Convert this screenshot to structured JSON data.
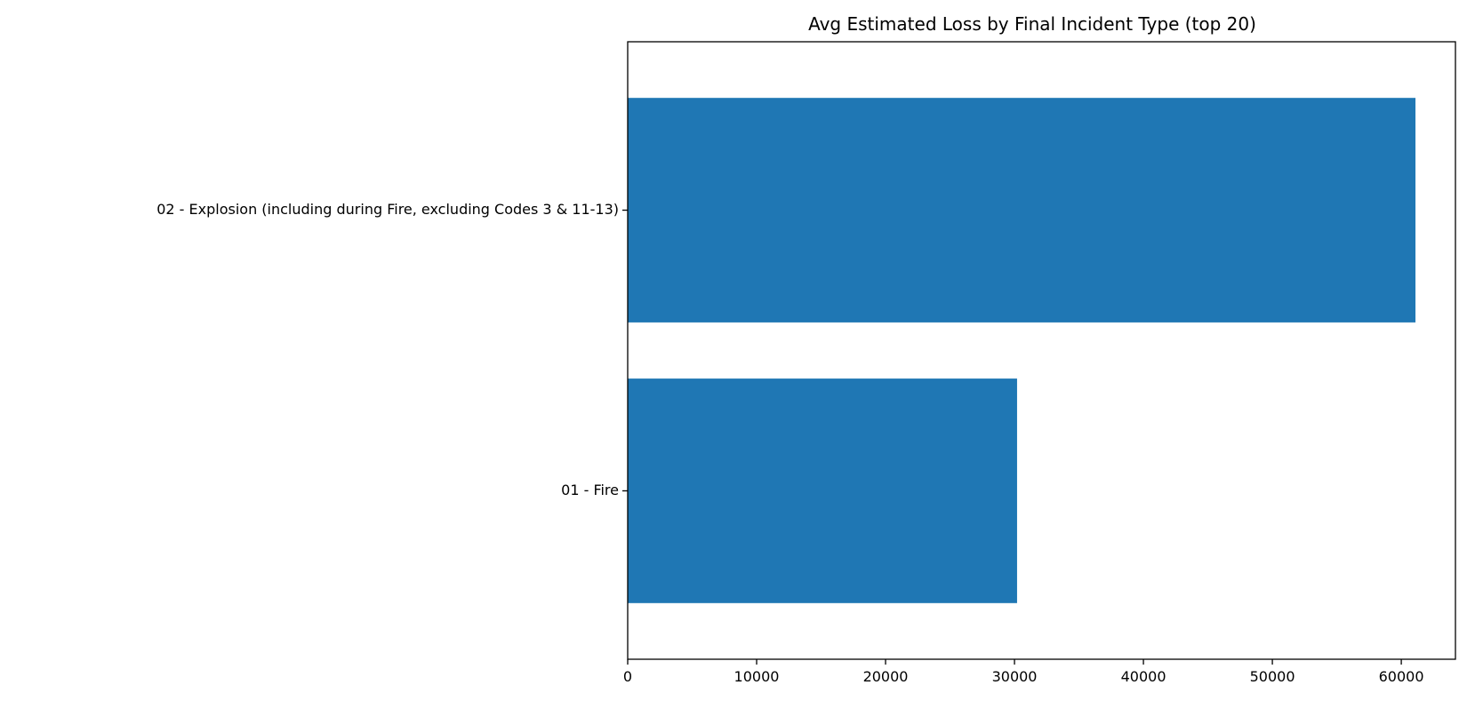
{
  "chart_data": {
    "type": "bar",
    "orientation": "horizontal",
    "title": "Avg Estimated Loss by Final Incident Type (top 20)",
    "xlabel": "",
    "ylabel": "",
    "categories": [
      "02 - Explosion (including during Fire, excluding Codes 3 & 11-13)",
      "01 - Fire"
    ],
    "values": [
      61100,
      30200
    ],
    "xlim": [
      0,
      64200
    ],
    "xticks": [
      0,
      10000,
      20000,
      30000,
      40000,
      50000,
      60000
    ],
    "xtick_labels": [
      "0",
      "10000",
      "20000",
      "30000",
      "40000",
      "50000",
      "60000"
    ],
    "grid": false,
    "legend": "none",
    "colors": {
      "bar": "#1f77b4",
      "axis": "#000000",
      "background": "#ffffff"
    }
  }
}
